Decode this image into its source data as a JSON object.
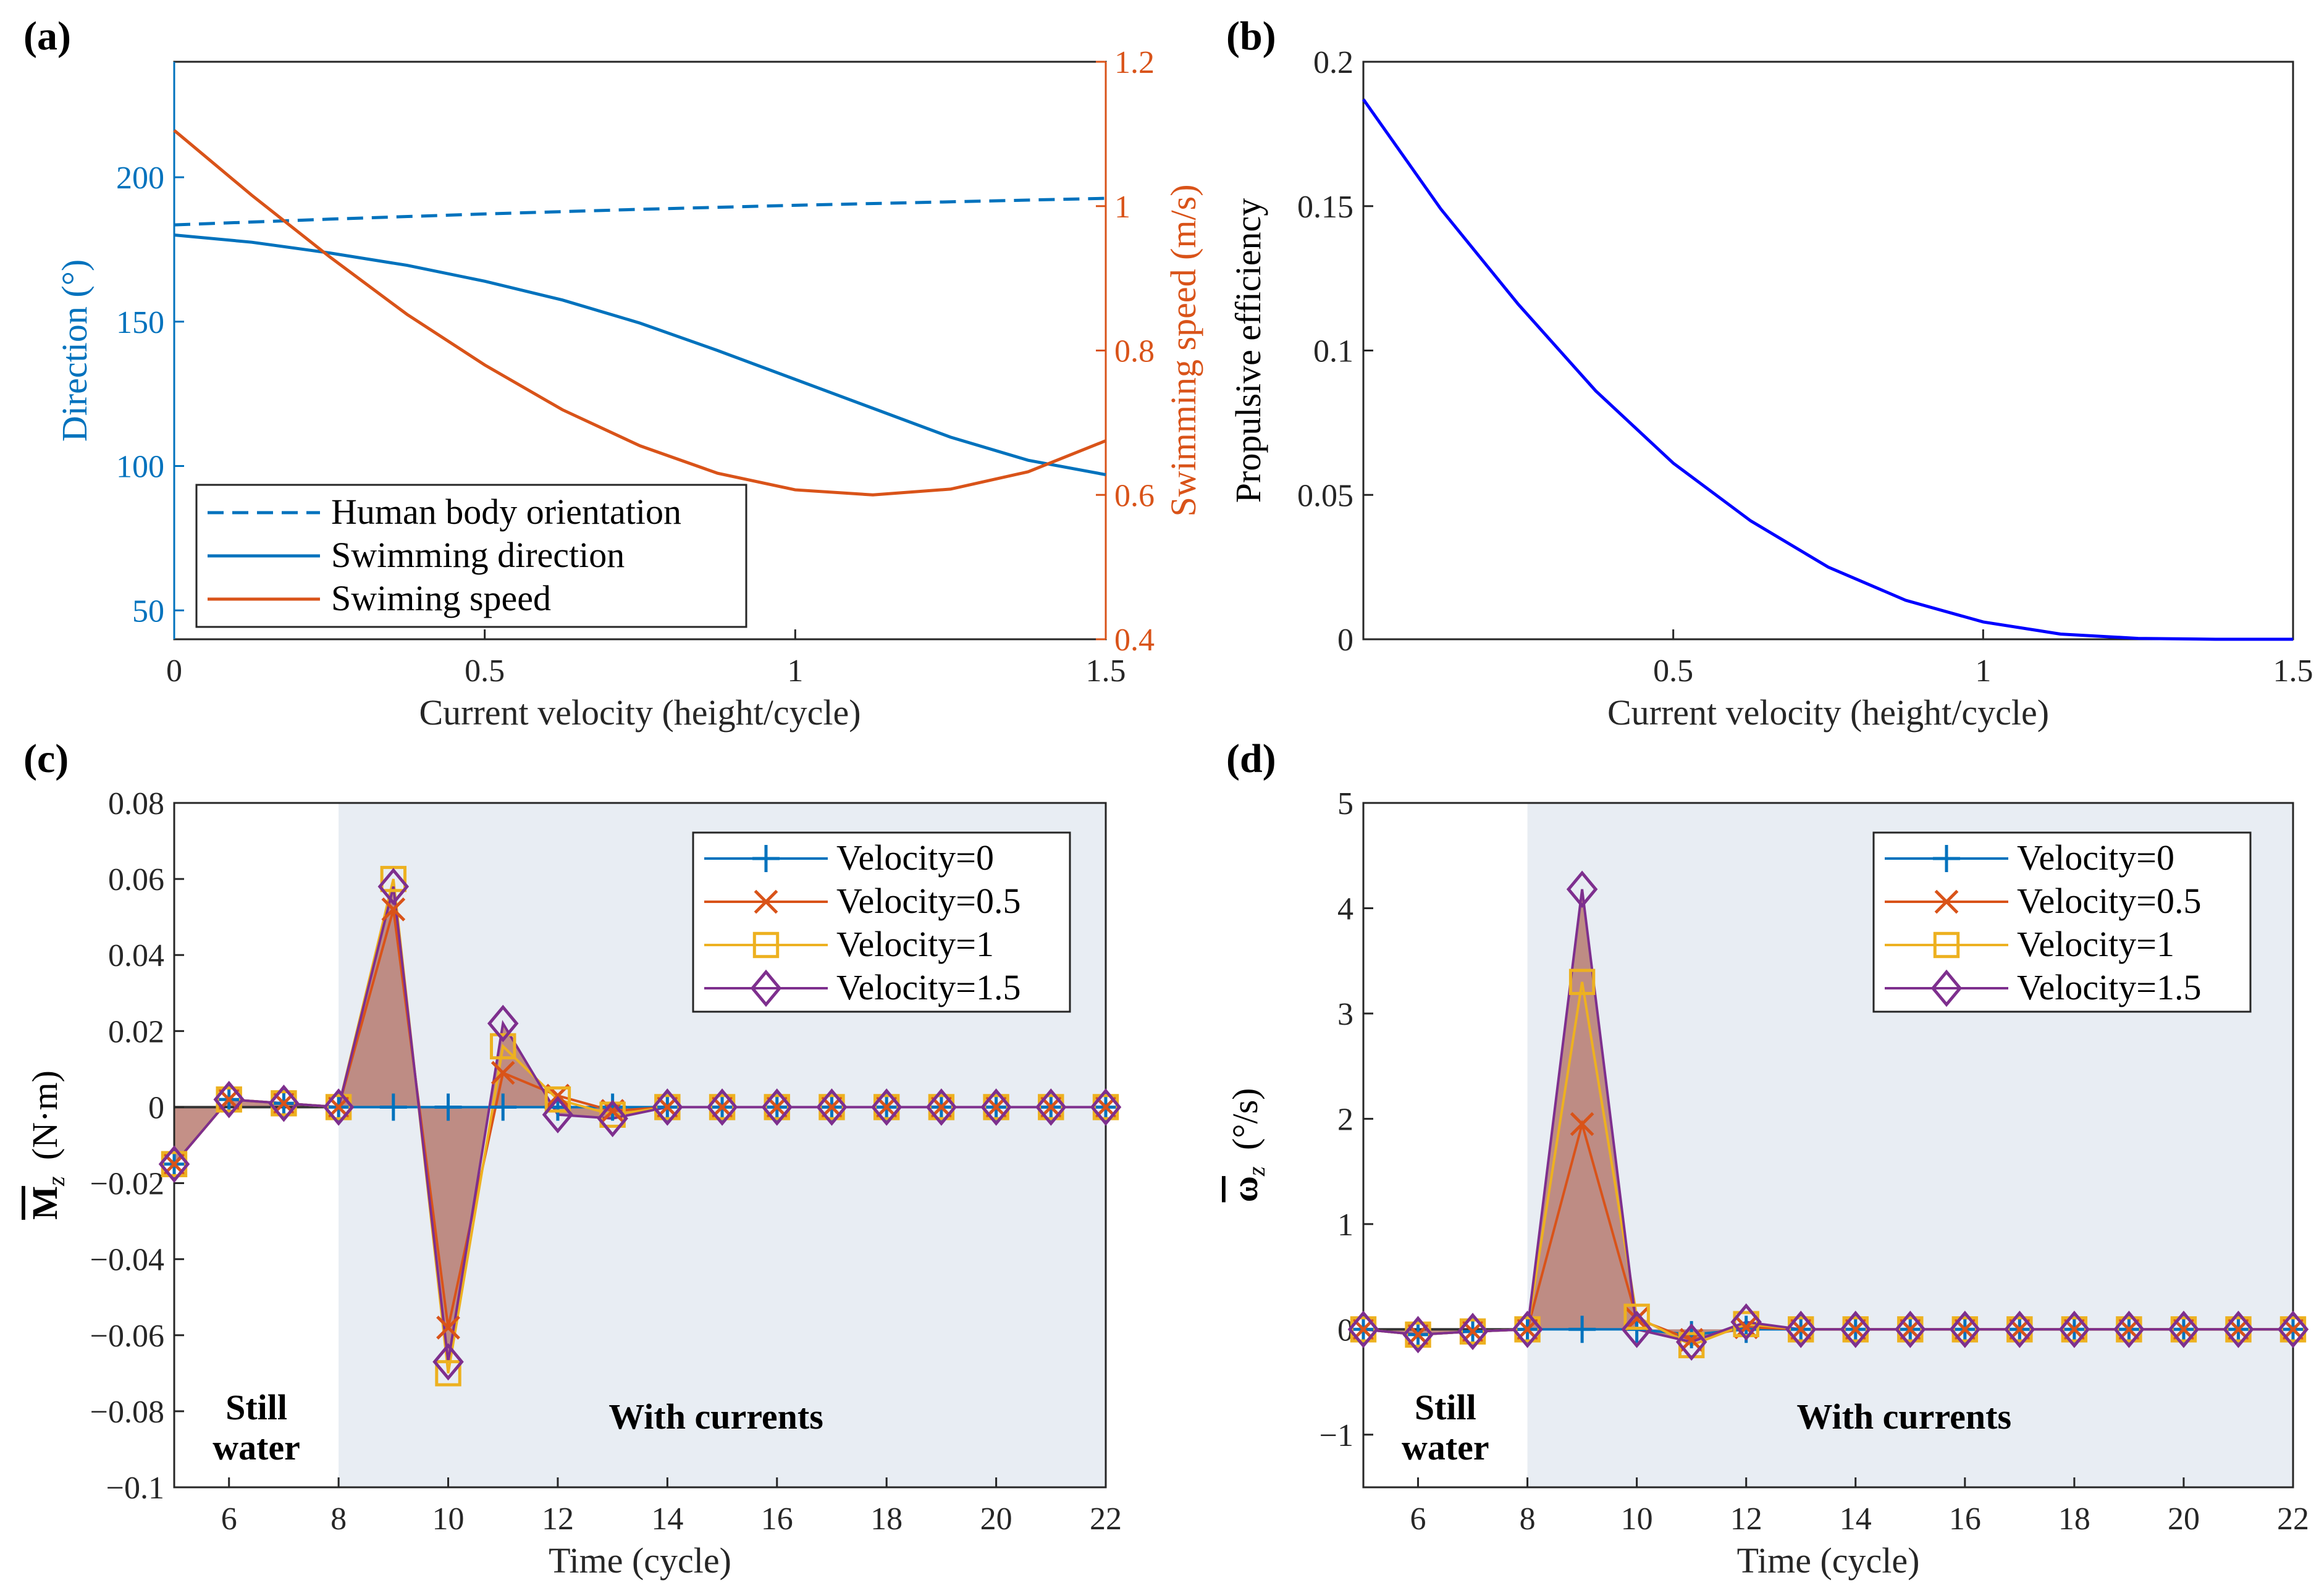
{
  "figure": {
    "panel_a_label": "(a)",
    "panel_b_label": "(b)",
    "panel_c_label": "(c)",
    "panel_d_label": "(d)"
  },
  "colors": {
    "blue": "#0072BD",
    "orange": "#D95319",
    "yellow": "#EDB120",
    "purple": "#7E2F8E",
    "pure_blue": "#0000FF",
    "shade": "#E8EDF3",
    "fill": "#B06B5F"
  },
  "chart_data": [
    {
      "id": "a",
      "type": "line",
      "title": "",
      "xlabel": "Current velocity (height/cycle)",
      "ylabel_left": "Direction (°)",
      "ylabel_right": "Swimming speed (m/s)",
      "xlim": [
        0,
        1.5
      ],
      "ylim_left": [
        40,
        240
      ],
      "ylim_right": [
        0.4,
        1.2
      ],
      "x_ticks": [
        0,
        0.5,
        1,
        1.5
      ],
      "x_tick_labels": [
        "0",
        "0.5",
        "1",
        "1.5"
      ],
      "y_left_ticks": [
        50,
        100,
        150,
        200
      ],
      "y_left_tick_labels": [
        "50",
        "100",
        "150",
        "200"
      ],
      "y_right_ticks": [
        0.4,
        0.6,
        0.8,
        1,
        1.2
      ],
      "y_right_tick_labels": [
        "0.4",
        "0.6",
        "0.8",
        "1",
        "1.2"
      ],
      "legend": [
        "Human body orientation",
        "Swimming direction",
        "Swiming speed"
      ],
      "legend_position": "bottom-left",
      "series": [
        {
          "name": "Human body orientation",
          "axis": "left",
          "style": "dashed",
          "color": "#0072BD",
          "x": [
            0,
            0.25,
            0.5,
            0.75,
            1.0,
            1.25,
            1.5
          ],
          "y": [
            183.5,
            185.5,
            187.3,
            188.9,
            190.3,
            191.5,
            192.7
          ]
        },
        {
          "name": "Swimming direction",
          "axis": "left",
          "style": "solid",
          "color": "#0072BD",
          "x": [
            0,
            0.125,
            0.25,
            0.375,
            0.5,
            0.625,
            0.75,
            0.875,
            1.0,
            1.125,
            1.25,
            1.375,
            1.5
          ],
          "y": [
            180,
            177.5,
            173.8,
            169.5,
            164,
            157.5,
            149.5,
            140,
            130,
            120,
            110,
            102,
            97
          ]
        },
        {
          "name": "Swiming speed",
          "axis": "right",
          "style": "solid",
          "color": "#D95319",
          "x": [
            0,
            0.125,
            0.25,
            0.375,
            0.5,
            0.625,
            0.75,
            0.875,
            1.0,
            1.125,
            1.25,
            1.375,
            1.5
          ],
          "y": [
            1.105,
            1.015,
            0.93,
            0.85,
            0.78,
            0.718,
            0.668,
            0.63,
            0.607,
            0.6,
            0.608,
            0.632,
            0.675
          ]
        }
      ]
    },
    {
      "id": "b",
      "type": "line",
      "title": "",
      "xlabel": "Current velocity (height/cycle)",
      "ylabel": "Propulsive efficiency",
      "xlim": [
        0,
        1.5
      ],
      "ylim": [
        0,
        0.2
      ],
      "x_ticks": [
        0.5,
        1,
        1.5
      ],
      "x_tick_labels": [
        "0.5",
        "1",
        "1.5"
      ],
      "y_ticks": [
        0,
        0.05,
        0.1,
        0.15,
        0.2
      ],
      "y_tick_labels": [
        "0",
        "0.05",
        "0.1",
        "0.15",
        "0.2"
      ],
      "series": [
        {
          "name": "Propulsive efficiency",
          "color": "#0000FF",
          "x": [
            0,
            0.125,
            0.25,
            0.375,
            0.5,
            0.625,
            0.75,
            0.875,
            1.0,
            1.125,
            1.25,
            1.375,
            1.5
          ],
          "y": [
            0.187,
            0.149,
            0.116,
            0.086,
            0.061,
            0.041,
            0.025,
            0.0135,
            0.006,
            0.0018,
            0.0003,
            0.0,
            0.0
          ]
        }
      ]
    },
    {
      "id": "c",
      "type": "line",
      "xlabel": "Time (cycle)",
      "ylabel_main": "M",
      "ylabel_sub": "z",
      "ylabel_unit": "(N·m)",
      "xlim": [
        5,
        22
      ],
      "ylim": [
        -0.1,
        0.08
      ],
      "x_ticks": [
        6,
        8,
        10,
        12,
        14,
        16,
        18,
        20,
        22
      ],
      "x_tick_labels": [
        "6",
        "8",
        "10",
        "12",
        "14",
        "16",
        "18",
        "20",
        "22"
      ],
      "y_ticks": [
        -0.1,
        -0.08,
        -0.06,
        -0.04,
        -0.02,
        0,
        0.02,
        0.04,
        0.06,
        0.08
      ],
      "y_tick_labels": [
        "−0.1",
        "−0.08",
        "−0.06",
        "−0.04",
        "−0.02",
        "0",
        "0.02",
        "0.04",
        "0.06",
        "0.08"
      ],
      "shaded_region": [
        8,
        22
      ],
      "annotation_left": [
        "Still",
        "water"
      ],
      "annotation_right": "With currents",
      "legend_position": "top-right",
      "series": [
        {
          "name": "Velocity=0",
          "marker": "plus",
          "color": "#0072BD",
          "x": [
            5,
            6,
            7,
            8,
            9,
            10,
            11,
            12,
            13,
            14,
            15,
            16,
            17,
            18,
            19,
            20,
            21,
            22
          ],
          "y": [
            -0.015,
            0.002,
            0.001,
            0,
            0,
            0,
            0,
            0,
            0,
            0,
            0,
            0,
            0,
            0,
            0,
            0,
            0,
            0
          ]
        },
        {
          "name": "Velocity=0.5",
          "marker": "x",
          "color": "#D95319",
          "x": [
            5,
            6,
            7,
            8,
            9,
            10,
            11,
            12,
            13,
            14,
            15,
            16,
            17,
            18,
            19,
            20,
            21,
            22
          ],
          "y": [
            -0.015,
            0.002,
            0.001,
            0,
            0.052,
            -0.058,
            0.009,
            0.003,
            -0.001,
            0,
            0,
            0,
            0,
            0,
            0,
            0,
            0,
            0
          ]
        },
        {
          "name": "Velocity=1",
          "marker": "square",
          "color": "#EDB120",
          "x": [
            5,
            6,
            7,
            8,
            9,
            10,
            11,
            12,
            13,
            14,
            15,
            16,
            17,
            18,
            19,
            20,
            21,
            22
          ],
          "y": [
            -0.015,
            0.002,
            0.001,
            0,
            0.06,
            -0.07,
            0.016,
            0.002,
            -0.002,
            0,
            0,
            0,
            0,
            0,
            0,
            0,
            0,
            0
          ]
        },
        {
          "name": "Velocity=1.5",
          "marker": "diamond",
          "color": "#7E2F8E",
          "x": [
            5,
            6,
            7,
            8,
            9,
            10,
            11,
            12,
            13,
            14,
            15,
            16,
            17,
            18,
            19,
            20,
            21,
            22
          ],
          "y": [
            -0.015,
            0.002,
            0.001,
            0,
            0.058,
            -0.067,
            0.022,
            -0.002,
            -0.003,
            0,
            0,
            0,
            0,
            0,
            0,
            0,
            0,
            0
          ]
        }
      ]
    },
    {
      "id": "d",
      "type": "line",
      "xlabel": "Time (cycle)",
      "ylabel_main": "ω",
      "ylabel_sub": "z",
      "ylabel_unit": "(°/s)",
      "xlim": [
        5,
        22
      ],
      "ylim": [
        -1.5,
        5
      ],
      "x_ticks": [
        6,
        8,
        10,
        12,
        14,
        16,
        18,
        20,
        22
      ],
      "x_tick_labels": [
        "6",
        "8",
        "10",
        "12",
        "14",
        "16",
        "18",
        "20",
        "22"
      ],
      "y_ticks": [
        -1,
        0,
        1,
        2,
        3,
        4,
        5
      ],
      "y_tick_labels": [
        "−1",
        "0",
        "1",
        "2",
        "3",
        "4",
        "5"
      ],
      "shaded_region": [
        8,
        22
      ],
      "annotation_left": [
        "Still",
        "water"
      ],
      "annotation_right": "With currents",
      "legend_position": "top-right",
      "series": [
        {
          "name": "Velocity=0",
          "marker": "plus",
          "color": "#0072BD",
          "x": [
            5,
            6,
            7,
            8,
            9,
            10,
            11,
            12,
            13,
            14,
            15,
            16,
            17,
            18,
            19,
            20,
            21,
            22
          ],
          "y": [
            0,
            -0.05,
            -0.02,
            0,
            0,
            0,
            -0.05,
            0,
            0,
            0,
            0,
            0,
            0,
            0,
            0,
            0,
            0,
            0
          ]
        },
        {
          "name": "Velocity=0.5",
          "marker": "x",
          "color": "#D95319",
          "x": [
            5,
            6,
            7,
            8,
            9,
            10,
            11,
            12,
            13,
            14,
            15,
            16,
            17,
            18,
            19,
            20,
            21,
            22
          ],
          "y": [
            0,
            -0.05,
            -0.02,
            0,
            1.95,
            0.1,
            -0.1,
            0.02,
            0,
            0,
            0,
            0,
            0,
            0,
            0,
            0,
            0,
            0
          ]
        },
        {
          "name": "Velocity=1",
          "marker": "square",
          "color": "#EDB120",
          "x": [
            5,
            6,
            7,
            8,
            9,
            10,
            11,
            12,
            13,
            14,
            15,
            16,
            17,
            18,
            19,
            20,
            21,
            22
          ],
          "y": [
            0,
            -0.05,
            -0.02,
            0,
            3.3,
            0.12,
            -0.15,
            0.05,
            0,
            0,
            0,
            0,
            0,
            0,
            0,
            0,
            0,
            0
          ]
        },
        {
          "name": "Velocity=1.5",
          "marker": "diamond",
          "color": "#7E2F8E",
          "x": [
            5,
            6,
            7,
            8,
            9,
            10,
            11,
            12,
            13,
            14,
            15,
            16,
            17,
            18,
            19,
            20,
            21,
            22
          ],
          "y": [
            0,
            -0.05,
            -0.02,
            0,
            4.18,
            0,
            -0.12,
            0.07,
            0,
            0,
            0,
            0,
            0,
            0,
            0,
            0,
            0,
            0
          ]
        }
      ]
    }
  ]
}
